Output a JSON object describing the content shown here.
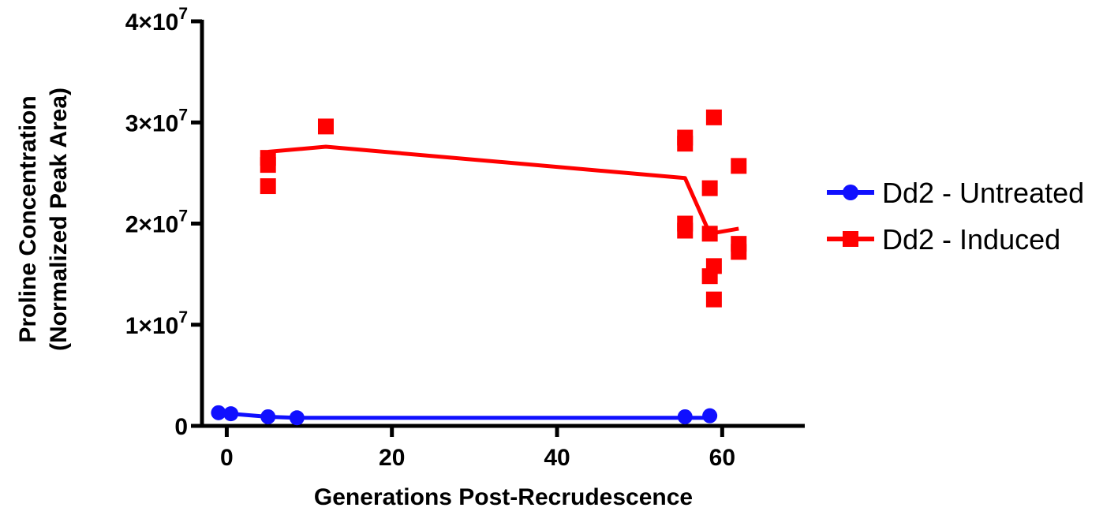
{
  "chart_data": {
    "type": "scatter",
    "title": "",
    "xlabel": "Generations Post-Recrudescence",
    "ylabel_lines": [
      "Proline Concentration",
      "(Normalized Peak Area)"
    ],
    "xlim": [
      -3,
      70
    ],
    "ylim": [
      0,
      40000000
    ],
    "xticks": [
      0,
      20,
      40,
      60
    ],
    "xtick_labels": [
      "0",
      "20",
      "40",
      "60"
    ],
    "yticks": [
      {
        "value": 0,
        "mantissa": "0",
        "exponent": ""
      },
      {
        "value": 10000000,
        "mantissa": "1×10",
        "exponent": "7"
      },
      {
        "value": 20000000,
        "mantissa": "2×10",
        "exponent": "7"
      },
      {
        "value": 30000000,
        "mantissa": "3×10",
        "exponent": "7"
      },
      {
        "value": 40000000,
        "mantissa": "4×10",
        "exponent": "7"
      }
    ],
    "grid": false,
    "legend_position": "right",
    "series": [
      {
        "name": "Dd2 - Untreated",
        "color": "#1010ff",
        "marker": "circle",
        "points": [
          {
            "x": -1,
            "y": 1300000
          },
          {
            "x": 0.5,
            "y": 1200000
          },
          {
            "x": 5,
            "y": 900000
          },
          {
            "x": 8.5,
            "y": 800000
          },
          {
            "x": 55.5,
            "y": 900000
          },
          {
            "x": 58.5,
            "y": 1000000
          }
        ],
        "line": [
          {
            "x": -1,
            "y": 1300000
          },
          {
            "x": 0.5,
            "y": 1200000
          },
          {
            "x": 5,
            "y": 900000
          },
          {
            "x": 8.5,
            "y": 800000
          },
          {
            "x": 55.5,
            "y": 800000
          },
          {
            "x": 58.5,
            "y": 800000
          }
        ]
      },
      {
        "name": "Dd2 - Induced",
        "color": "#ff0000",
        "marker": "square",
        "points": [
          {
            "x": 5,
            "y": 26500000
          },
          {
            "x": 5,
            "y": 25800000
          },
          {
            "x": 5,
            "y": 23700000
          },
          {
            "x": 12,
            "y": 29600000
          },
          {
            "x": 55.5,
            "y": 28500000
          },
          {
            "x": 55.5,
            "y": 27900000
          },
          {
            "x": 55.5,
            "y": 20000000
          },
          {
            "x": 55.5,
            "y": 19300000
          },
          {
            "x": 58.5,
            "y": 23500000
          },
          {
            "x": 58.5,
            "y": 19000000
          },
          {
            "x": 58.5,
            "y": 14800000
          },
          {
            "x": 59,
            "y": 30500000
          },
          {
            "x": 59,
            "y": 15800000
          },
          {
            "x": 59,
            "y": 12500000
          },
          {
            "x": 62,
            "y": 25700000
          },
          {
            "x": 62,
            "y": 18000000
          },
          {
            "x": 62,
            "y": 17200000
          }
        ],
        "line": [
          {
            "x": 5,
            "y": 27100000
          },
          {
            "x": 12,
            "y": 27600000
          },
          {
            "x": 55.5,
            "y": 24500000
          },
          {
            "x": 58.5,
            "y": 19000000
          },
          {
            "x": 62,
            "y": 19500000
          }
        ]
      }
    ]
  }
}
